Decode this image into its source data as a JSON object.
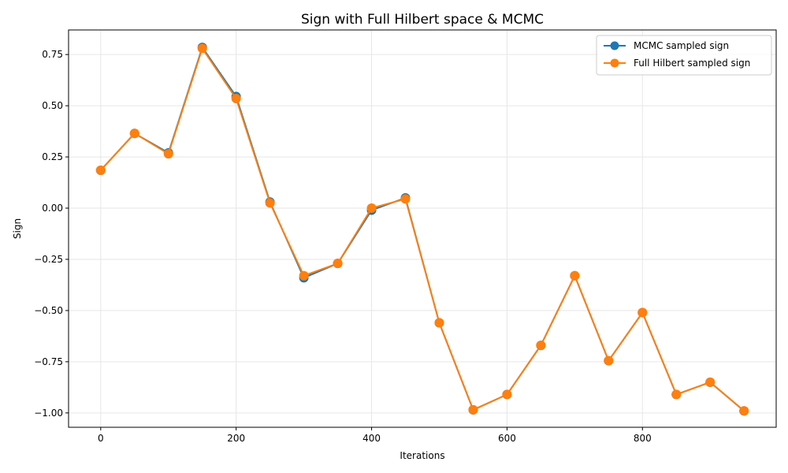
{
  "chart_data": {
    "type": "line",
    "title": "Sign with Full Hilbert space & MCMC",
    "xlabel": "Iterations",
    "ylabel": "Sign",
    "xlim": [
      -47.5,
      997.5
    ],
    "ylim": [
      -1.07,
      0.87
    ],
    "grid": true,
    "legend_position": "top-right",
    "x_ticks": [
      0,
      200,
      400,
      600,
      800
    ],
    "x_tick_labels": [
      "0",
      "200",
      "400",
      "600",
      "800"
    ],
    "y_ticks": [
      0.75,
      0.5,
      0.25,
      0.0,
      -0.25,
      -0.5,
      -0.75,
      -1.0
    ],
    "y_tick_labels": [
      "0.75",
      "0.50",
      "0.25",
      "0.00",
      "−0.25",
      "−0.50",
      "−0.75",
      "−1.00"
    ],
    "x": [
      0,
      50,
      100,
      150,
      200,
      250,
      300,
      350,
      400,
      450,
      500,
      550,
      600,
      650,
      700,
      750,
      800,
      850,
      900,
      950
    ],
    "series": [
      {
        "name": "MCMC sampled sign",
        "color": "#1f77b4",
        "values": [
          0.185,
          0.365,
          0.27,
          0.785,
          0.545,
          0.03,
          -0.34,
          -0.27,
          -0.01,
          0.05,
          -0.56,
          -0.985,
          -0.91,
          -0.67,
          -0.33,
          -0.745,
          -0.51,
          -0.91,
          -0.85,
          -0.99
        ]
      },
      {
        "name": "Full Hilbert sampled sign",
        "color": "#ff7f0e",
        "values": [
          0.185,
          0.365,
          0.265,
          0.78,
          0.535,
          0.025,
          -0.33,
          -0.27,
          0.0,
          0.045,
          -0.56,
          -0.985,
          -0.91,
          -0.67,
          -0.33,
          -0.745,
          -0.51,
          -0.91,
          -0.85,
          -0.99
        ]
      }
    ]
  }
}
